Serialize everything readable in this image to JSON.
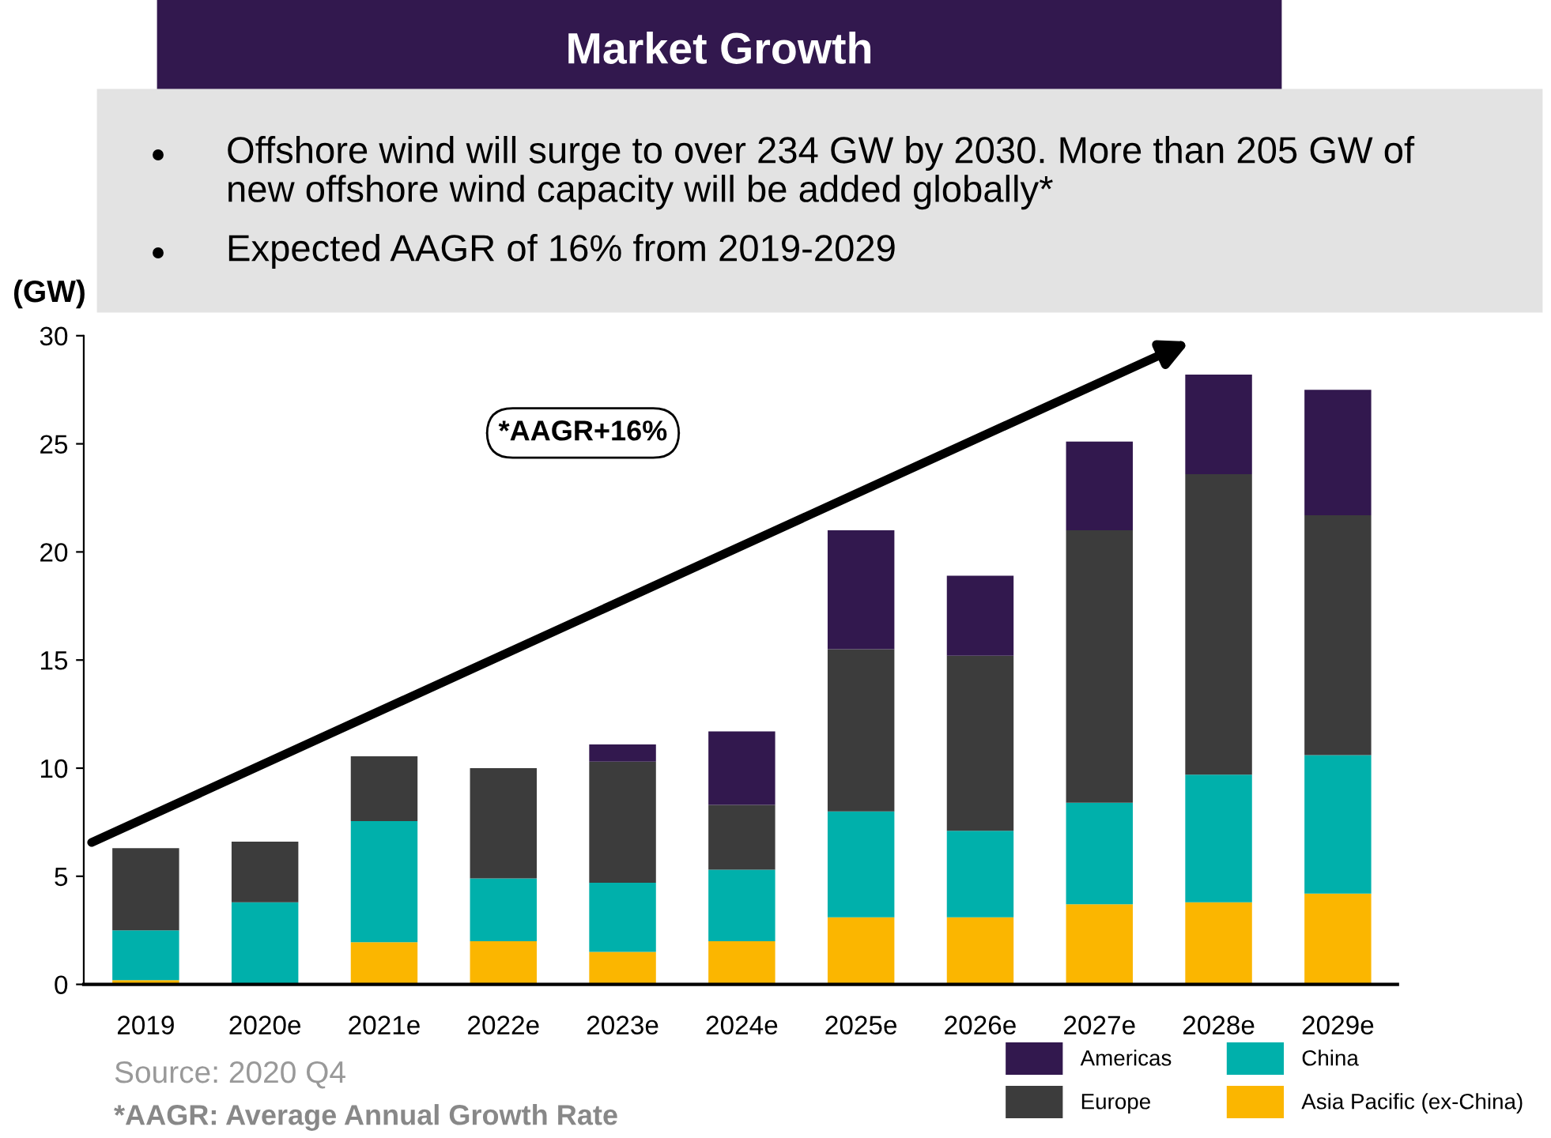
{
  "chart_data": {
    "type": "bar",
    "title": "Market Growth",
    "ylabel": "(GW)",
    "stacked": true,
    "categories": [
      "2019",
      "2020e",
      "2021e",
      "2022e",
      "2023e",
      "2024e",
      "2025e",
      "2026e",
      "2027e",
      "2028e",
      "2029e"
    ],
    "series": [
      {
        "name": "Asia Pacific (ex-China)",
        "color": "#fbb600",
        "values": [
          0.2,
          0,
          1.95,
          2.0,
          1.5,
          2.0,
          3.1,
          3.1,
          3.7,
          3.8,
          4.2
        ]
      },
      {
        "name": "China",
        "color": "#00b0ab",
        "values": [
          2.3,
          3.8,
          5.6,
          2.9,
          3.2,
          3.3,
          4.9,
          4.0,
          4.7,
          5.9,
          6.4
        ]
      },
      {
        "name": "Europe",
        "color": "#3c3c3c",
        "values": [
          3.8,
          2.8,
          3.0,
          5.1,
          5.6,
          3.0,
          7.5,
          8.1,
          12.6,
          13.9,
          11.1
        ]
      },
      {
        "name": "Americas",
        "color": "#32184e",
        "values": [
          0,
          0,
          0,
          0,
          0.8,
          3.4,
          5.5,
          3.7,
          4.1,
          4.6,
          5.8
        ]
      }
    ],
    "ylim": [
      0,
      30
    ],
    "yticks": [
      0,
      5,
      10,
      15,
      20,
      25,
      30
    ],
    "grid": false,
    "legend": "bottom right",
    "annotations": [
      "Offshore wind will surge to over 234 GW by 2030. More than 205 GW of new offshore wind capacity will be added globally*",
      "Expected AAGR of 16% from 2019-2029",
      "*AAGR+16%",
      "Source: 2020 Q4",
      "*AAGR: Average Annual Growth Rate"
    ]
  }
}
